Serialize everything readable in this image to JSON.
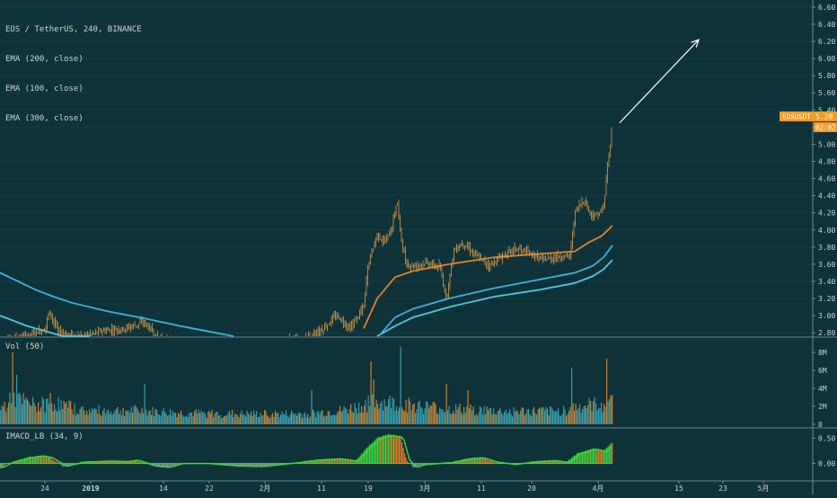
{
  "legend": {
    "symbol_line": "EOS / TetherUS, 240, BINANCE",
    "ema_lines": [
      "EMA (200, close)",
      "EMA (100, close)",
      "EMA (300, close)"
    ]
  },
  "volume_title": "Vol (50)",
  "macd_title": "IMACD_LB (34, 9)",
  "price_tag": {
    "symbol": "EOSUSDT",
    "value": "5.28",
    "timer": "02:02:"
  },
  "colors": {
    "background": "#0e3239",
    "candles": "#d79b4e",
    "ema200": "#e0842a",
    "ema100": "#3fb1d9",
    "ema300": "#4fc7e8",
    "vol_up": "#3aa7b9",
    "vol_down": "#e08a2e",
    "macd_green": "#3cd63c",
    "macd_orange": "#e07a22",
    "macd_gray": "#8a9aa0",
    "price_tag": "#f59a23",
    "arrow": "#ffffff"
  },
  "chart_data": [
    {
      "type": "candlestick",
      "y_axis_ticks": [
        "6.60",
        "6.40",
        "6.20",
        "6.00",
        "5.80",
        "5.60",
        "5.40",
        "5.20",
        "5.00",
        "4.80",
        "4.60",
        "4.40",
        "4.20",
        "4.00",
        "3.80",
        "3.60",
        "3.40",
        "3.20",
        "3.00",
        "2.80"
      ],
      "ylim": [
        2.76,
        6.62
      ],
      "x_axis_ticks": [
        "24",
        "2019",
        "14",
        "22",
        "2月",
        "11",
        "19",
        "3月",
        "11",
        "20",
        "4月",
        "15",
        "23",
        "5月"
      ],
      "price_path": [
        [
          0,
          2.7
        ],
        [
          30,
          2.75
        ],
        [
          50,
          2.85
        ],
        [
          55,
          3.05
        ],
        [
          65,
          2.8
        ],
        [
          90,
          2.75
        ],
        [
          115,
          2.82
        ],
        [
          140,
          2.85
        ],
        [
          160,
          2.92
        ],
        [
          180,
          2.7
        ],
        [
          260,
          2.6
        ],
        [
          340,
          2.72
        ],
        [
          360,
          2.85
        ],
        [
          375,
          3.0
        ],
        [
          390,
          2.85
        ],
        [
          405,
          3.1
        ],
        [
          410,
          3.6
        ],
        [
          420,
          3.95
        ],
        [
          428,
          3.85
        ],
        [
          436,
          4.0
        ],
        [
          442,
          4.35
        ],
        [
          446,
          3.95
        ],
        [
          452,
          3.6
        ],
        [
          462,
          3.58
        ],
        [
          475,
          3.62
        ],
        [
          490,
          3.55
        ],
        [
          497,
          3.2
        ],
        [
          505,
          3.75
        ],
        [
          515,
          3.85
        ],
        [
          530,
          3.7
        ],
        [
          545,
          3.58
        ],
        [
          560,
          3.7
        ],
        [
          575,
          3.78
        ],
        [
          590,
          3.72
        ],
        [
          605,
          3.65
        ],
        [
          620,
          3.68
        ],
        [
          635,
          3.7
        ],
        [
          640,
          4.2
        ],
        [
          650,
          4.35
        ],
        [
          660,
          4.15
        ],
        [
          668,
          4.2
        ],
        [
          672,
          4.25
        ],
        [
          676,
          4.7
        ],
        [
          680,
          5.05
        ],
        [
          682,
          5.28
        ]
      ],
      "series": [
        {
          "name": "EMA (200, close)",
          "points": [
            [
              405,
              2.85
            ],
            [
              420,
              3.2
            ],
            [
              440,
              3.45
            ],
            [
              460,
              3.52
            ],
            [
              500,
              3.6
            ],
            [
              550,
              3.68
            ],
            [
              600,
              3.72
            ],
            [
              640,
              3.75
            ],
            [
              655,
              3.85
            ],
            [
              670,
              3.93
            ],
            [
              682,
              4.05
            ]
          ]
        },
        {
          "name": "EMA (100, close)",
          "points": [
            [
              0,
              3.5
            ],
            [
              20,
              3.4
            ],
            [
              40,
              3.3
            ],
            [
              60,
              3.22
            ],
            [
              80,
              3.15
            ],
            [
              120,
              3.05
            ],
            [
              160,
              2.97
            ],
            [
              200,
              2.88
            ],
            [
              240,
              2.8
            ],
            [
              260,
              2.75
            ]
          ]
        },
        {
          "name": "EMA (300, close)",
          "points": [
            [
              0,
              3.0
            ],
            [
              30,
              2.88
            ],
            [
              50,
              2.82
            ],
            [
              70,
              2.76
            ],
            [
              100,
              2.68
            ]
          ]
        },
        {
          "name": "EMA (100, close)",
          "points": [
            [
              425,
              2.8
            ],
            [
              440,
              2.98
            ],
            [
              460,
              3.08
            ],
            [
              500,
              3.2
            ],
            [
              550,
              3.32
            ],
            [
              600,
              3.42
            ],
            [
              640,
              3.5
            ],
            [
              660,
              3.58
            ],
            [
              672,
              3.68
            ],
            [
              682,
              3.82
            ]
          ]
        },
        {
          "name": "EMA (300, close)",
          "points": [
            [
              420,
              2.75
            ],
            [
              440,
              2.88
            ],
            [
              460,
              2.98
            ],
            [
              500,
              3.1
            ],
            [
              550,
              3.22
            ],
            [
              600,
              3.3
            ],
            [
              640,
              3.38
            ],
            [
              660,
              3.46
            ],
            [
              672,
              3.54
            ],
            [
              682,
              3.65
            ]
          ]
        }
      ],
      "annotation_arrow": {
        "from": [
          690,
          5.25
        ],
        "to": [
          778,
          6.22
        ]
      }
    },
    {
      "type": "bar",
      "title": "Vol (50)",
      "y_axis_ticks": [
        "8M",
        "6M",
        "4M",
        "2M",
        "0"
      ],
      "ylim": [
        0,
        8.6
      ],
      "profile": [
        [
          0,
          1.8
        ],
        [
          15,
          3.0
        ],
        [
          40,
          2.2
        ],
        [
          60,
          2.5
        ],
        [
          90,
          1.6
        ],
        [
          150,
          1.6
        ],
        [
          200,
          1.3
        ],
        [
          260,
          1.2
        ],
        [
          340,
          1.2
        ],
        [
          380,
          1.6
        ],
        [
          405,
          2.2
        ],
        [
          415,
          2.6
        ],
        [
          440,
          2.5
        ],
        [
          460,
          2.2
        ],
        [
          500,
          1.8
        ],
        [
          560,
          1.5
        ],
        [
          620,
          1.5
        ],
        [
          640,
          2.0
        ],
        [
          670,
          2.4
        ],
        [
          682,
          2.6
        ]
      ],
      "spikes": [
        [
          14,
          8.0
        ],
        [
          18,
          5.5
        ],
        [
          55,
          3.5
        ],
        [
          160,
          4.5
        ],
        [
          347,
          3.8
        ],
        [
          412,
          7.0
        ],
        [
          416,
          5.0
        ],
        [
          446,
          8.6
        ],
        [
          497,
          4.5
        ],
        [
          520,
          3.8
        ],
        [
          636,
          6.3
        ],
        [
          675,
          7.3
        ],
        [
          680,
          3.2
        ]
      ]
    },
    {
      "type": "bar",
      "title": "IMACD_LB (34, 9)",
      "y_axis_ticks": [
        "0.50",
        "0.00"
      ],
      "ylim": [
        -0.22,
        0.6
      ],
      "profile": [
        [
          0,
          -0.08
        ],
        [
          10,
          0.02
        ],
        [
          30,
          0.12
        ],
        [
          45,
          0.16
        ],
        [
          55,
          0.12
        ],
        [
          70,
          -0.06
        ],
        [
          90,
          0.03
        ],
        [
          120,
          0.05
        ],
        [
          140,
          0.04
        ],
        [
          150,
          0.07
        ],
        [
          170,
          -0.05
        ],
        [
          185,
          -0.08
        ],
        [
          200,
          0.0
        ],
        [
          230,
          0.0
        ],
        [
          260,
          -0.05
        ],
        [
          290,
          -0.06
        ],
        [
          330,
          0.02
        ],
        [
          350,
          0.07
        ],
        [
          375,
          0.1
        ],
        [
          395,
          0.05
        ],
        [
          410,
          0.35
        ],
        [
          420,
          0.52
        ],
        [
          432,
          0.58
        ],
        [
          445,
          0.55
        ],
        [
          452,
          0.08
        ],
        [
          460,
          -0.08
        ],
        [
          470,
          -0.02
        ],
        [
          500,
          0.02
        ],
        [
          520,
          0.1
        ],
        [
          535,
          0.12
        ],
        [
          550,
          0.03
        ],
        [
          570,
          -0.02
        ],
        [
          595,
          0.04
        ],
        [
          615,
          0.06
        ],
        [
          630,
          0.02
        ],
        [
          642,
          0.2
        ],
        [
          660,
          0.3
        ],
        [
          672,
          0.25
        ],
        [
          680,
          0.4
        ]
      ]
    }
  ]
}
